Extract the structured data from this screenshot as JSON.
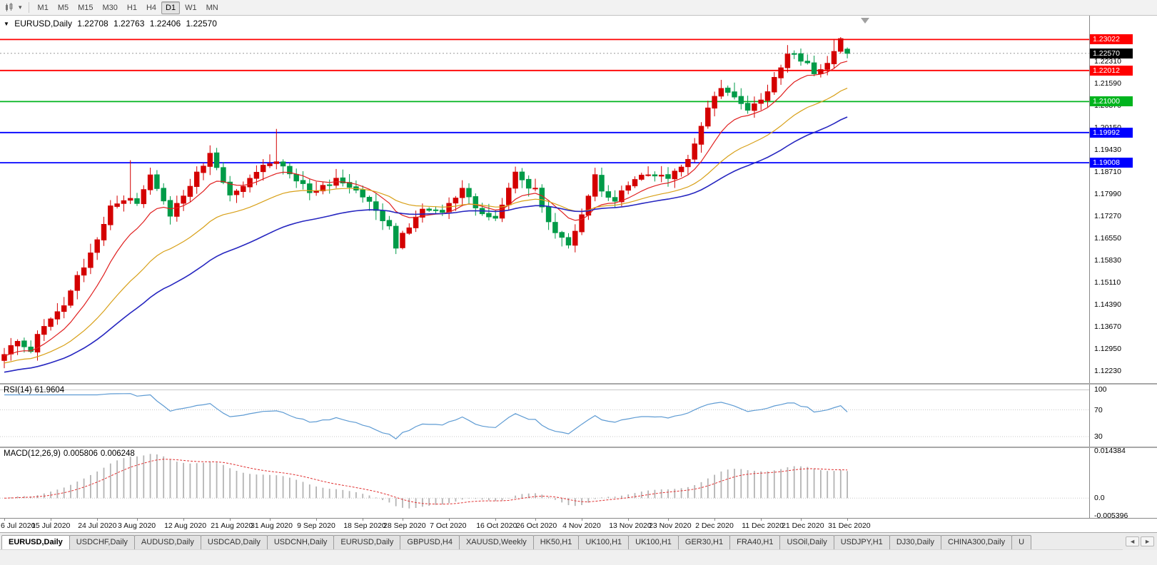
{
  "toolbar": {
    "timeframes": [
      "M1",
      "M5",
      "M15",
      "M30",
      "H1",
      "H4",
      "D1",
      "W1",
      "MN"
    ],
    "active_timeframe": "D1"
  },
  "chart": {
    "collapse_arrow": "▼",
    "symbol": "EURUSD,Daily",
    "open": "1.22708",
    "high": "1.22763",
    "low": "1.22406",
    "close": "1.22570"
  },
  "rsi_panel": {
    "name": "RSI(14)",
    "value": "61.9604",
    "line_color": "#5e9bd3",
    "levels": [
      {
        "label": "100",
        "value": 100
      },
      {
        "label": "70",
        "value": 70
      },
      {
        "label": "30",
        "value": 30
      }
    ]
  },
  "macd_panel": {
    "name": "MACD(12,26,9)",
    "value_main": "0.005806",
    "value_signal": "0.006248",
    "histogram_color": "#b4b4b4",
    "signal_color": "#e03030",
    "levels": [
      {
        "label": "0.014384",
        "value": 0.014384
      },
      {
        "label": "0.0",
        "value": 0
      },
      {
        "label": "-0.005396",
        "value": -0.005396
      }
    ]
  },
  "tabs": {
    "items": [
      "EURUSD,Daily",
      "USDCHF,Daily",
      "AUDUSD,Daily",
      "USDCAD,Daily",
      "USDCNH,Daily",
      "EURUSD,Daily",
      "GBPUSD,H4",
      "XAUUSD,Weekly",
      "HK50,H1",
      "UK100,H1",
      "UK100,H1",
      "GER30,H1",
      "FRA40,H1",
      "USOil,Daily",
      "USDJPY,H1",
      "DJ30,Daily",
      "CHINA300,Daily",
      "U"
    ],
    "active_index": 0,
    "scroll_left_icon": "◄",
    "scroll_right_icon": "►"
  },
  "chart_data": {
    "type": "candlestick",
    "symbol": "EURUSD",
    "period": "Daily",
    "up_color": "#d40000",
    "down_color": "#009b48",
    "ma_lines": [
      {
        "name": "ma-fast",
        "color": "#e02020",
        "period": 10
      },
      {
        "name": "ma-mid",
        "color": "#d8a018",
        "period": 25
      },
      {
        "name": "ma-slow",
        "color": "#2626c0",
        "period": 45
      }
    ],
    "y_ticks": [
      "1.22310",
      "1.21590",
      "1.20870",
      "1.20150",
      "1.19430",
      "1.18710",
      "1.17990",
      "1.17270",
      "1.16550",
      "1.15830",
      "1.15110",
      "1.14390",
      "1.13670",
      "1.12950",
      "1.12230"
    ],
    "x_ticks": [
      {
        "label": "6 Jul 2020",
        "day": 0
      },
      {
        "label": "15 Jul 2020",
        "day": 7
      },
      {
        "label": "24 Jul 2020",
        "day": 14
      },
      {
        "label": "3 Aug 2020",
        "day": 20
      },
      {
        "label": "12 Aug 2020",
        "day": 27
      },
      {
        "label": "21 Aug 2020",
        "day": 34
      },
      {
        "label": "31 Aug 2020",
        "day": 40
      },
      {
        "label": "9 Sep 2020",
        "day": 47
      },
      {
        "label": "18 Sep 2020",
        "day": 54
      },
      {
        "label": "28 Sep 2020",
        "day": 60
      },
      {
        "label": "7 Oct 2020",
        "day": 67
      },
      {
        "label": "16 Oct 2020",
        "day": 74
      },
      {
        "label": "26 Oct 2020",
        "day": 80
      },
      {
        "label": "4 Nov 2020",
        "day": 87
      },
      {
        "label": "13 Nov 2020",
        "day": 94
      },
      {
        "label": "23 Nov 2020",
        "day": 100
      },
      {
        "label": "2 Dec 2020",
        "day": 107
      },
      {
        "label": "11 Dec 2020",
        "day": 114
      },
      {
        "label": "21 Dec 2020",
        "day": 120
      },
      {
        "label": "31 Dec 2020",
        "day": 127
      }
    ],
    "horizontal_lines": [
      {
        "label": "1.23022",
        "value": 1.23022,
        "color": "#ff0000"
      },
      {
        "label": "1.22012",
        "value": 1.22012,
        "color": "#ff0000"
      },
      {
        "label": "1.21000",
        "value": 1.21,
        "color": "#00b41e"
      },
      {
        "label": "1.19992",
        "value": 1.19992,
        "color": "#0000ff"
      },
      {
        "label": "1.19008",
        "value": 1.19008,
        "color": "#0000ff"
      }
    ],
    "current_price": {
      "label": "1.22570",
      "value": 1.2257,
      "color": "#000000"
    },
    "num_candles": 128,
    "price_keyframes": [
      [
        0,
        1.1285
      ],
      [
        2,
        1.1312
      ],
      [
        4,
        1.1296
      ],
      [
        7,
        1.1402
      ],
      [
        9,
        1.1432
      ],
      [
        11,
        1.1525
      ],
      [
        14,
        1.1656
      ],
      [
        16,
        1.1752
      ],
      [
        19,
        1.1778
      ],
      [
        20,
        1.1762
      ],
      [
        22,
        1.1866
      ],
      [
        25,
        1.1736
      ],
      [
        27,
        1.1792
      ],
      [
        31,
        1.193
      ],
      [
        34,
        1.1796
      ],
      [
        36,
        1.1833
      ],
      [
        39,
        1.1903
      ],
      [
        41,
        1.191
      ],
      [
        44,
        1.184
      ],
      [
        47,
        1.1801
      ],
      [
        50,
        1.1855
      ],
      [
        52,
        1.1816
      ],
      [
        55,
        1.1772
      ],
      [
        58,
        1.1687
      ],
      [
        59,
        1.1631
      ],
      [
        60,
        1.1664
      ],
      [
        63,
        1.1748
      ],
      [
        66,
        1.1733
      ],
      [
        69,
        1.1826
      ],
      [
        71,
        1.1745
      ],
      [
        74,
        1.1718
      ],
      [
        77,
        1.1862
      ],
      [
        80,
        1.181
      ],
      [
        83,
        1.1674
      ],
      [
        85,
        1.164
      ],
      [
        87,
        1.1724
      ],
      [
        89,
        1.1873
      ],
      [
        90,
        1.1813
      ],
      [
        92,
        1.1779
      ],
      [
        95,
        1.1852
      ],
      [
        98,
        1.1865
      ],
      [
        100,
        1.1839
      ],
      [
        103,
        1.1914
      ],
      [
        106,
        1.2071
      ],
      [
        108,
        1.2144
      ],
      [
        110,
        1.2106
      ],
      [
        112,
        1.208
      ],
      [
        114,
        1.2113
      ],
      [
        117,
        1.2199
      ],
      [
        118,
        1.2265
      ],
      [
        120,
        1.2242
      ],
      [
        122,
        1.219
      ],
      [
        124,
        1.2215
      ],
      [
        126,
        1.2299
      ],
      [
        127,
        1.2257
      ]
    ],
    "high_overrides": {
      "19": 1.1909,
      "41": 1.2011,
      "125": 1.2304,
      "126": 1.231
    },
    "low_overrides": {
      "86": 1.1609
    },
    "last_candle_ohlc": [
      1.22708,
      1.22763,
      1.22406,
      1.2257
    ]
  }
}
